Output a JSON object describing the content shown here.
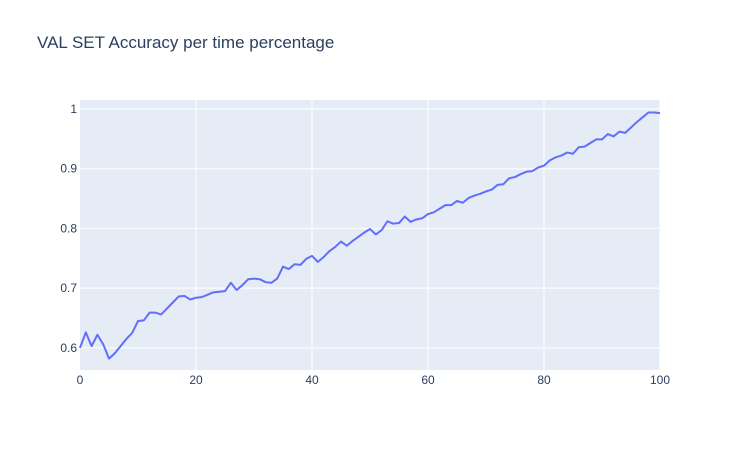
{
  "chart_data": {
    "type": "line",
    "title": "VAL SET Accuracy per time percentage",
    "xlabel": "",
    "ylabel": "",
    "xlim": [
      0,
      100
    ],
    "ylim": [
      0.563,
      1.015
    ],
    "grid": true,
    "colors": {
      "background": "#e5ecf6",
      "grid": "#ffffff",
      "line": "#636efa",
      "text": "#2a3f5f"
    },
    "x_ticks": [
      0,
      20,
      40,
      60,
      80,
      100
    ],
    "x_tick_labels": [
      "0",
      "20",
      "40",
      "60",
      "80",
      "100"
    ],
    "y_ticks": [
      0.6,
      0.7,
      0.8,
      0.9,
      1.0
    ],
    "y_tick_labels": [
      "0.6",
      "0.7",
      "0.8",
      "0.9",
      "1"
    ],
    "series": [
      {
        "x": [
          0,
          1,
          2,
          3,
          4,
          5,
          6,
          7,
          8,
          9,
          10,
          11,
          12,
          13,
          14,
          15,
          16,
          17,
          18,
          19,
          20,
          21,
          22,
          23,
          24,
          25,
          26,
          27,
          28,
          29,
          30,
          31,
          32,
          33,
          34,
          35,
          36,
          37,
          38,
          39,
          40,
          41,
          42,
          43,
          44,
          45,
          46,
          47,
          48,
          49,
          50,
          51,
          52,
          53,
          54,
          55,
          56,
          57,
          58,
          59,
          60,
          61,
          62,
          63,
          64,
          65,
          66,
          67,
          68,
          69,
          70,
          71,
          72,
          73,
          74,
          75,
          76,
          77,
          78,
          79,
          80,
          81,
          82,
          83,
          84,
          85,
          86,
          87,
          88,
          89,
          90,
          91,
          92,
          93,
          94,
          95,
          96,
          97,
          98,
          99,
          100
        ],
        "y": [
          0.6,
          0.626,
          0.603,
          0.622,
          0.606,
          0.582,
          0.591,
          0.603,
          0.615,
          0.625,
          0.645,
          0.646,
          0.659,
          0.659,
          0.656,
          0.666,
          0.676,
          0.686,
          0.687,
          0.681,
          0.684,
          0.685,
          0.689,
          0.693,
          0.694,
          0.695,
          0.709,
          0.697,
          0.705,
          0.715,
          0.716,
          0.715,
          0.71,
          0.709,
          0.716,
          0.736,
          0.732,
          0.74,
          0.739,
          0.749,
          0.754,
          0.744,
          0.752,
          0.762,
          0.769,
          0.778,
          0.771,
          0.779,
          0.786,
          0.793,
          0.799,
          0.79,
          0.797,
          0.812,
          0.808,
          0.809,
          0.82,
          0.811,
          0.815,
          0.817,
          0.824,
          0.827,
          0.833,
          0.839,
          0.839,
          0.846,
          0.843,
          0.851,
          0.855,
          0.858,
          0.862,
          0.865,
          0.873,
          0.874,
          0.884,
          0.886,
          0.891,
          0.895,
          0.896,
          0.902,
          0.905,
          0.914,
          0.919,
          0.922,
          0.927,
          0.925,
          0.936,
          0.937,
          0.943,
          0.949,
          0.949,
          0.958,
          0.954,
          0.962,
          0.96,
          0.969,
          0.978,
          0.986,
          0.994,
          0.994,
          0.993
        ]
      }
    ]
  }
}
